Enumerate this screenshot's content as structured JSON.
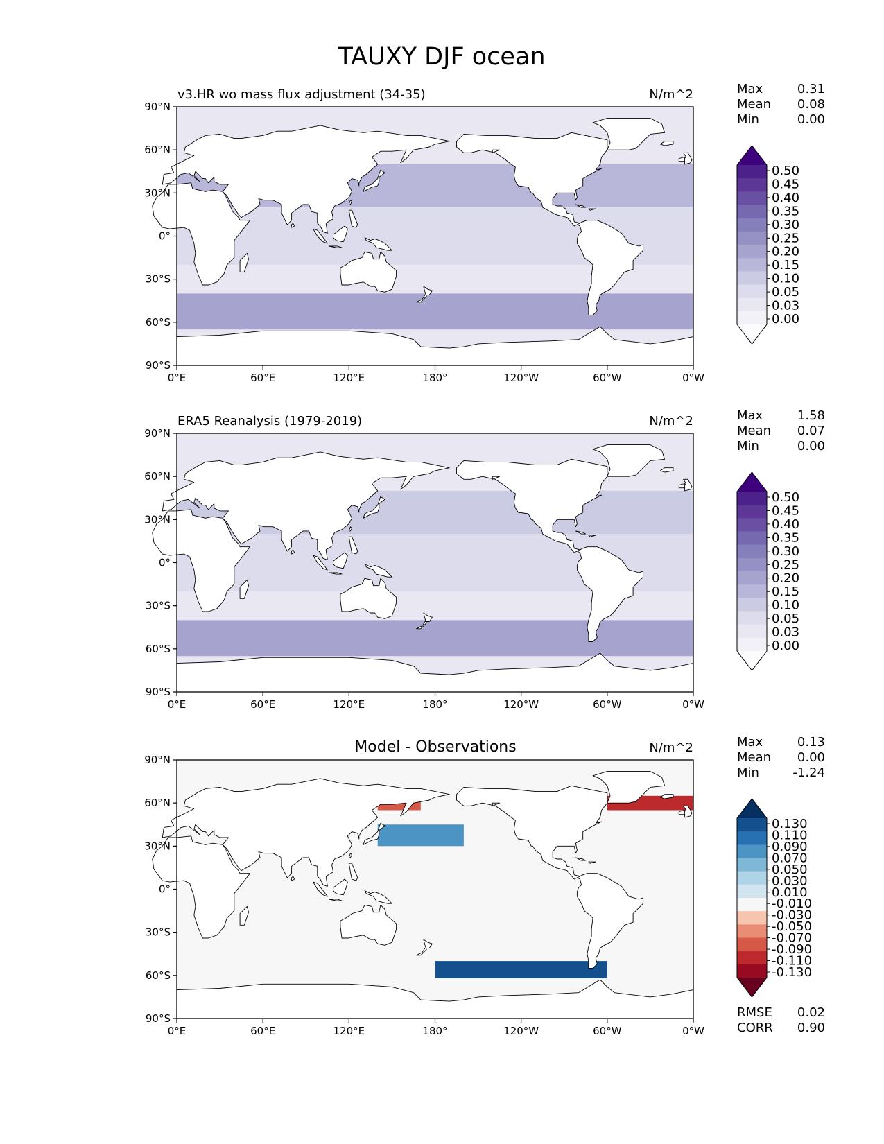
{
  "figure_title": "TAUXY DJF ocean",
  "x_ticks": [
    "0°E",
    "60°E",
    "120°E",
    "180°",
    "120°W",
    "60°W",
    "0°W"
  ],
  "y_ticks": [
    "90°N",
    "60°N",
    "30°N",
    "0°",
    "30°S",
    "60°S",
    "90°S"
  ],
  "stat_labels": {
    "max": "Max",
    "mean": "Mean",
    "min": "Min",
    "rmse": "RMSE",
    "corr": "CORR"
  },
  "colors": {
    "land_fill": "#ffffff",
    "coast_stroke": "#000000",
    "purples": [
      "#fcfbfd",
      "#f3f1f8",
      "#e8e7f2",
      "#dcdcec",
      "#cbcbe3",
      "#b8b7da",
      "#a6a3cf",
      "#9691c5",
      "#8580bb",
      "#7669b0",
      "#6950a3",
      "#5d3796",
      "#4d218a",
      "#3f007d"
    ],
    "rdbu": [
      "#67001f",
      "#970a22",
      "#bd2a2e",
      "#d65847",
      "#e98e75",
      "#f7c4ad",
      "#f7f7f7",
      "#d1e5f0",
      "#b0d4e7",
      "#7fb7d7",
      "#4b94c4",
      "#2770b2",
      "#14508d",
      "#053061"
    ]
  },
  "chart_data": [
    {
      "type": "heatmap",
      "title": "v3.HR wo mass flux adjustment (34-35)",
      "units": "N/m^2",
      "stats": {
        "max": "0.31",
        "mean": "0.08",
        "min": "0.00"
      },
      "colorbar": {
        "labels": [
          "0.50",
          "0.45",
          "0.40",
          "0.35",
          "0.30",
          "0.25",
          "0.20",
          "0.15",
          "0.10",
          "0.05",
          "0.03",
          "0.00"
        ],
        "extend": "both",
        "palette": "purples"
      },
      "field_bands": [
        {
          "lat": [
            20,
            50
          ],
          "value": 0.15
        },
        {
          "lat": [
            -40,
            -65
          ],
          "value": 0.22
        },
        {
          "lat": [
            -20,
            20
          ],
          "value": 0.09
        }
      ]
    },
    {
      "type": "heatmap",
      "title": "ERA5 Reanalysis (1979-2019)",
      "units": "N/m^2",
      "stats": {
        "max": "1.58",
        "mean": "0.07",
        "min": "0.00"
      },
      "colorbar": {
        "labels": [
          "0.50",
          "0.45",
          "0.40",
          "0.35",
          "0.30",
          "0.25",
          "0.20",
          "0.15",
          "0.10",
          "0.05",
          "0.03",
          "0.00"
        ],
        "extend": "both",
        "palette": "purples"
      },
      "field_bands": [
        {
          "lat": [
            20,
            50
          ],
          "value": 0.14
        },
        {
          "lat": [
            -40,
            -65
          ],
          "value": 0.2
        },
        {
          "lat": [
            -20,
            20
          ],
          "value": 0.08
        }
      ]
    },
    {
      "type": "heatmap",
      "title": "Model - Observations",
      "units": "N/m^2",
      "stats": {
        "max": "0.13",
        "mean": "0.00",
        "min": "-1.24"
      },
      "metrics": {
        "rmse": "0.02",
        "corr": "0.90"
      },
      "colorbar": {
        "labels": [
          "0.130",
          "0.110",
          "0.090",
          "0.070",
          "0.050",
          "0.030",
          "0.010",
          "-0.010",
          "-0.030",
          "-0.050",
          "-0.070",
          "-0.090",
          "-0.110",
          "-0.130"
        ],
        "extend": "both",
        "palette": "rdbu"
      },
      "field_bands": [
        {
          "lat": [
            -50,
            -62
          ],
          "lon": [
            180,
            300
          ],
          "value": 0.1
        },
        {
          "lat": [
            55,
            65
          ],
          "lon": [
            300,
            360
          ],
          "value": -0.08
        },
        {
          "lat": [
            55,
            65
          ],
          "lon": [
            140,
            170
          ],
          "value": -0.06
        },
        {
          "lat": [
            30,
            45
          ],
          "lon": [
            140,
            200
          ],
          "value": 0.05
        }
      ]
    }
  ]
}
